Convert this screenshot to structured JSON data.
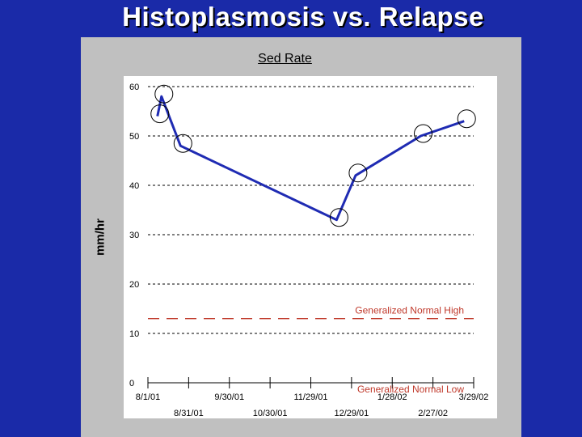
{
  "slide": {
    "title": "Histoplasmosis vs. Relapse"
  },
  "chart_data": {
    "type": "line",
    "title": "Sed Rate",
    "ylabel": "mm/hr",
    "xlabel": "",
    "ylim": [
      0,
      60
    ],
    "yticks": [
      "0",
      "10",
      "20",
      "30",
      "40",
      "50",
      "60"
    ],
    "grid": true,
    "xticks": [
      "8/1/01",
      "8/31/01",
      "9/30/01",
      "10/30/01",
      "11/29/01",
      "12/29/01",
      "1/28/02",
      "2/27/02",
      "3/29/02"
    ],
    "series": [
      {
        "color": "#1f2bb3",
        "points": [
          {
            "x": "8/8/01",
            "y": 54
          },
          {
            "x": "8/11/01",
            "y": 58
          },
          {
            "x": "8/25/01",
            "y": 48
          },
          {
            "x": "12/18/01",
            "y": 33
          },
          {
            "x": "1/1/02",
            "y": 42
          },
          {
            "x": "2/18/02",
            "y": 50
          },
          {
            "x": "3/22/02",
            "y": 53
          }
        ]
      }
    ],
    "reference_lines": [
      {
        "label": "Generalized Normal High",
        "y": 13,
        "color": "#c0392b"
      },
      {
        "label": "Generalized Normal Low",
        "y": 0,
        "color": "#c0392b"
      }
    ]
  }
}
